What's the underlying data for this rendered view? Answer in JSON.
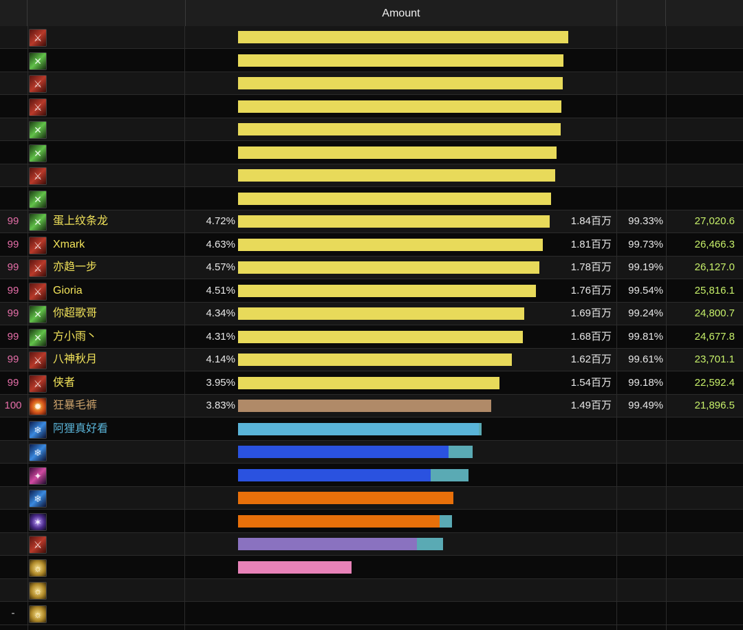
{
  "header": {
    "title": "Amount"
  },
  "colors": {
    "rank_text": "#e66ea8",
    "name_text": "#f2e35a",
    "dps_text": "#c7f06a",
    "bar_yellow": "#e8da5a",
    "bar_tan": "#b08a68",
    "bar_sky": "#5ab4d8",
    "bar_blue": "#2a52e0",
    "bar_orange": "#e8700a",
    "bar_purple": "#8a72c0",
    "bar_pink": "#e882b8",
    "bar_teal": "#5aaab4"
  },
  "rows": [
    {
      "rank": "",
      "icon": "warrior-icon",
      "name": "",
      "pct": "",
      "bar": 0.96,
      "color": "#e8da5a",
      "total": "",
      "active": "",
      "dps": "",
      "blurred": true
    },
    {
      "rank": "",
      "icon": "swords-icon",
      "name": "",
      "pct": "",
      "bar": 0.945,
      "color": "#e8da5a",
      "total": "",
      "active": "",
      "dps": "",
      "blurred": true
    },
    {
      "rank": "",
      "icon": "warrior-icon",
      "name": "",
      "pct": "",
      "bar": 0.943,
      "color": "#e8da5a",
      "total": "",
      "active": "",
      "dps": "",
      "blurred": true
    },
    {
      "rank": "",
      "icon": "warrior-icon",
      "name": "",
      "pct": "",
      "bar": 0.94,
      "color": "#e8da5a",
      "total": "",
      "active": "",
      "dps": "",
      "blurred": true
    },
    {
      "rank": "",
      "icon": "swords-icon",
      "name": "",
      "pct": "",
      "bar": 0.938,
      "color": "#e8da5a",
      "total": "",
      "active": "",
      "dps": "",
      "blurred": true
    },
    {
      "rank": "",
      "icon": "swords-icon",
      "name": "",
      "pct": "",
      "bar": 0.926,
      "color": "#e8da5a",
      "total": "",
      "active": "",
      "dps": "",
      "blurred": true
    },
    {
      "rank": "",
      "icon": "warrior-icon",
      "name": "",
      "pct": "",
      "bar": 0.922,
      "color": "#e8da5a",
      "total": "",
      "active": "",
      "dps": "",
      "blurred": true
    },
    {
      "rank": "",
      "icon": "swords-icon",
      "name": "",
      "pct": "",
      "bar": 0.91,
      "color": "#e8da5a",
      "total": "",
      "active": "",
      "dps": "",
      "blurred": true
    },
    {
      "rank": "99",
      "icon": "swords-icon",
      "name": "蛋上纹条龙",
      "pct": "4.72%",
      "bar": 0.905,
      "color": "#e8da5a",
      "total": "1.84百万",
      "active": "99.33%",
      "dps": "27,020.6"
    },
    {
      "rank": "99",
      "icon": "warrior-icon",
      "name": "Xmark",
      "pct": "4.63%",
      "bar": 0.886,
      "color": "#e8da5a",
      "total": "1.81百万",
      "active": "99.73%",
      "dps": "26,466.3"
    },
    {
      "rank": "99",
      "icon": "warrior-icon",
      "name": "亦趋一步",
      "pct": "4.57%",
      "bar": 0.876,
      "color": "#e8da5a",
      "total": "1.78百万",
      "active": "99.19%",
      "dps": "26,127.0"
    },
    {
      "rank": "99",
      "icon": "warrior-icon",
      "name": "Gioria",
      "pct": "4.51%",
      "bar": 0.866,
      "color": "#e8da5a",
      "total": "1.76百万",
      "active": "99.54%",
      "dps": "25,816.1"
    },
    {
      "rank": "99",
      "icon": "swords-icon",
      "name": "你超歌哥",
      "pct": "4.34%",
      "bar": 0.832,
      "color": "#e8da5a",
      "total": "1.69百万",
      "active": "99.24%",
      "dps": "24,800.7"
    },
    {
      "rank": "99",
      "icon": "swords-icon",
      "name": "方小雨丶",
      "pct": "4.31%",
      "bar": 0.828,
      "color": "#e8da5a",
      "total": "1.68百万",
      "active": "99.81%",
      "dps": "24,677.8"
    },
    {
      "rank": "99",
      "icon": "warrior-icon",
      "name": "八神秋月",
      "pct": "4.14%",
      "bar": 0.796,
      "color": "#e8da5a",
      "total": "1.62百万",
      "active": "99.61%",
      "dps": "23,701.1"
    },
    {
      "rank": "99",
      "icon": "warrior-icon",
      "name": "侠者",
      "pct": "3.95%",
      "bar": 0.76,
      "color": "#e8da5a",
      "total": "1.54百万",
      "active": "99.18%",
      "dps": "22,592.4"
    },
    {
      "rank": "100",
      "icon": "fire-icon",
      "name": "狂暴毛裤",
      "pct": "3.83%",
      "bar": 0.736,
      "color": "#b08a68",
      "total": "1.49百万",
      "active": "99.49%",
      "dps": "21,896.5",
      "nameColor": "#c9a06a"
    },
    {
      "rank": "",
      "icon": "frost-icon",
      "name": "阿狸真好看",
      "pct": "",
      "bar": 0.7,
      "color": "#5ab4d8",
      "bar2": 0.008,
      "total": "",
      "active": "",
      "dps": "",
      "blurred": true,
      "nameColor": "#5ab4d8"
    },
    {
      "rank": "",
      "icon": "frost-icon",
      "name": "",
      "pct": "",
      "bar": 0.612,
      "color": "#2a52e0",
      "bar2": 0.07,
      "total": "",
      "active": "",
      "dps": "",
      "blurred": true
    },
    {
      "rank": "",
      "icon": "arcane-icon",
      "name": "",
      "pct": "",
      "bar": 0.56,
      "color": "#2a52e0",
      "bar2": 0.11,
      "total": "",
      "active": "",
      "dps": "",
      "blurred": true
    },
    {
      "rank": "",
      "icon": "frost-icon",
      "name": "",
      "pct": "",
      "bar": 0.625,
      "color": "#e8700a",
      "total": "",
      "active": "",
      "dps": "",
      "blurred": true
    },
    {
      "rank": "",
      "icon": "shadow-icon",
      "name": "",
      "pct": "",
      "bar": 0.585,
      "color": "#e8700a",
      "bar2": 0.035,
      "total": "",
      "active": "",
      "dps": "",
      "blurred": true
    },
    {
      "rank": "",
      "icon": "warrior-icon",
      "name": "",
      "pct": "",
      "bar": 0.52,
      "color": "#8a72c0",
      "bar2": 0.075,
      "total": "",
      "active": "",
      "dps": "",
      "blurred": true
    },
    {
      "rank": "",
      "icon": "gold-icon",
      "name": "",
      "pct": "",
      "bar": 0.33,
      "color": "#e882b8",
      "total": "",
      "active": "",
      "dps": "",
      "blurred": true
    },
    {
      "rank": "",
      "icon": "gold-icon",
      "name": "",
      "pct": "",
      "bar": 0,
      "color": "#e8da5a",
      "total": "",
      "active": "",
      "dps": "",
      "blurred": true
    },
    {
      "rank": "-",
      "icon": "gold-icon",
      "name": "",
      "pct": "",
      "bar": 0,
      "color": "#e8da5a",
      "total": "",
      "active": "",
      "dps": "",
      "blurred": true
    }
  ]
}
